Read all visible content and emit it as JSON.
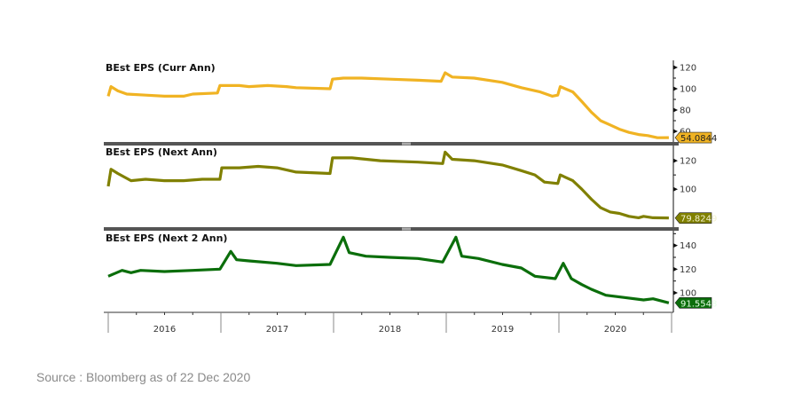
{
  "source": "Source : Bloomberg as of 22 Dec 2020",
  "chart_data": [
    {
      "type": "line",
      "title": "BEst EPS (Curr Ann)",
      "color": "#F0B323",
      "last_value_label": "54.0844",
      "label_text_color": "#222222",
      "ylim": [
        50,
        125
      ],
      "yticks": [
        60,
        80,
        100,
        120
      ],
      "points": [
        [
          "2016-01-01",
          93
        ],
        [
          "2016-01-10",
          102
        ],
        [
          "2016-02-01",
          98
        ],
        [
          "2016-03-01",
          95
        ],
        [
          "2016-05-01",
          94
        ],
        [
          "2016-07-01",
          93
        ],
        [
          "2016-09-01",
          93
        ],
        [
          "2016-10-01",
          95
        ],
        [
          "2016-12-20",
          96
        ],
        [
          "2016-12-28",
          103
        ],
        [
          "2017-03-01",
          103
        ],
        [
          "2017-04-01",
          102
        ],
        [
          "2017-06-01",
          103
        ],
        [
          "2017-08-01",
          102
        ],
        [
          "2017-09-01",
          101
        ],
        [
          "2017-12-20",
          100
        ],
        [
          "2017-12-28",
          109
        ],
        [
          "2018-02-01",
          110
        ],
        [
          "2018-04-01",
          110
        ],
        [
          "2018-07-01",
          109
        ],
        [
          "2018-10-01",
          108
        ],
        [
          "2018-12-15",
          107
        ],
        [
          "2018-12-28",
          115
        ],
        [
          "2019-01-20",
          111
        ],
        [
          "2019-04-01",
          110
        ],
        [
          "2019-07-01",
          106
        ],
        [
          "2019-09-01",
          101
        ],
        [
          "2019-11-01",
          97
        ],
        [
          "2019-12-10",
          93
        ],
        [
          "2019-12-28",
          94
        ],
        [
          "2020-01-05",
          102
        ],
        [
          "2020-02-15",
          97
        ],
        [
          "2020-03-15",
          88
        ],
        [
          "2020-04-15",
          78
        ],
        [
          "2020-05-15",
          70
        ],
        [
          "2020-06-15",
          66
        ],
        [
          "2020-07-15",
          62
        ],
        [
          "2020-08-15",
          59
        ],
        [
          "2020-09-15",
          57
        ],
        [
          "2020-10-15",
          56
        ],
        [
          "2020-11-15",
          54
        ],
        [
          "2020-12-22",
          54.08
        ]
      ]
    },
    {
      "type": "line",
      "title": "BEst EPS (Next Ann)",
      "color": "#808000",
      "last_value_label": "79.8249",
      "label_text_color": "#f0f0d0",
      "ylim": [
        74,
        130
      ],
      "yticks": [
        100,
        120
      ],
      "points": [
        [
          "2016-01-01",
          102
        ],
        [
          "2016-01-10",
          114
        ],
        [
          "2016-02-01",
          111
        ],
        [
          "2016-03-15",
          106
        ],
        [
          "2016-05-01",
          107
        ],
        [
          "2016-07-01",
          106
        ],
        [
          "2016-09-01",
          106
        ],
        [
          "2016-11-01",
          107
        ],
        [
          "2016-12-28",
          107
        ],
        [
          "2017-01-03",
          115
        ],
        [
          "2017-03-01",
          115
        ],
        [
          "2017-05-01",
          116
        ],
        [
          "2017-07-01",
          115
        ],
        [
          "2017-09-01",
          112
        ],
        [
          "2017-12-20",
          111
        ],
        [
          "2017-12-28",
          122
        ],
        [
          "2018-03-01",
          122
        ],
        [
          "2018-06-01",
          120
        ],
        [
          "2018-10-01",
          119
        ],
        [
          "2018-12-20",
          118
        ],
        [
          "2018-12-28",
          126
        ],
        [
          "2019-01-20",
          121
        ],
        [
          "2019-04-01",
          120
        ],
        [
          "2019-07-01",
          117
        ],
        [
          "2019-09-01",
          113
        ],
        [
          "2019-10-15",
          110
        ],
        [
          "2019-11-15",
          105
        ],
        [
          "2019-12-28",
          104
        ],
        [
          "2020-01-05",
          110
        ],
        [
          "2020-02-15",
          106
        ],
        [
          "2020-03-15",
          100
        ],
        [
          "2020-04-15",
          93
        ],
        [
          "2020-05-15",
          87
        ],
        [
          "2020-06-15",
          84
        ],
        [
          "2020-07-15",
          83
        ],
        [
          "2020-08-15",
          81
        ],
        [
          "2020-09-15",
          80
        ],
        [
          "2020-10-01",
          81
        ],
        [
          "2020-11-01",
          80
        ],
        [
          "2020-12-22",
          79.82
        ]
      ]
    },
    {
      "type": "line",
      "title": "BEst EPS (Next 2 Ann)",
      "color": "#0B6E0B",
      "last_value_label": "91.5548",
      "label_text_color": "#e8ffe8",
      "ylim": [
        85,
        151
      ],
      "yticks": [
        100,
        120,
        140
      ],
      "points": [
        [
          "2016-01-01",
          114
        ],
        [
          "2016-02-15",
          119
        ],
        [
          "2016-03-15",
          117
        ],
        [
          "2016-04-15",
          119
        ],
        [
          "2016-07-01",
          118
        ],
        [
          "2016-10-01",
          119
        ],
        [
          "2016-12-28",
          120
        ],
        [
          "2017-02-01",
          135
        ],
        [
          "2017-02-20",
          128
        ],
        [
          "2017-04-01",
          127
        ],
        [
          "2017-07-01",
          125
        ],
        [
          "2017-09-01",
          123
        ],
        [
          "2017-12-20",
          124
        ],
        [
          "2018-02-01",
          147
        ],
        [
          "2018-02-20",
          134
        ],
        [
          "2018-04-15",
          131
        ],
        [
          "2018-07-01",
          130
        ],
        [
          "2018-10-01",
          129
        ],
        [
          "2018-12-20",
          126
        ],
        [
          "2019-02-01",
          147
        ],
        [
          "2019-02-20",
          131
        ],
        [
          "2019-04-15",
          129
        ],
        [
          "2019-07-01",
          124
        ],
        [
          "2019-09-01",
          121
        ],
        [
          "2019-10-15",
          114
        ],
        [
          "2019-12-20",
          112
        ],
        [
          "2020-01-15",
          125
        ],
        [
          "2020-02-10",
          112
        ],
        [
          "2020-03-15",
          107
        ],
        [
          "2020-04-15",
          103
        ],
        [
          "2020-06-01",
          98
        ],
        [
          "2020-08-01",
          96
        ],
        [
          "2020-10-01",
          94
        ],
        [
          "2020-11-01",
          95
        ],
        [
          "2020-12-22",
          91.55
        ]
      ]
    }
  ],
  "xaxis": {
    "years": [
      "2016",
      "2017",
      "2018",
      "2019",
      "2020"
    ],
    "range": [
      "2016-01-01",
      "2020-12-31"
    ]
  }
}
